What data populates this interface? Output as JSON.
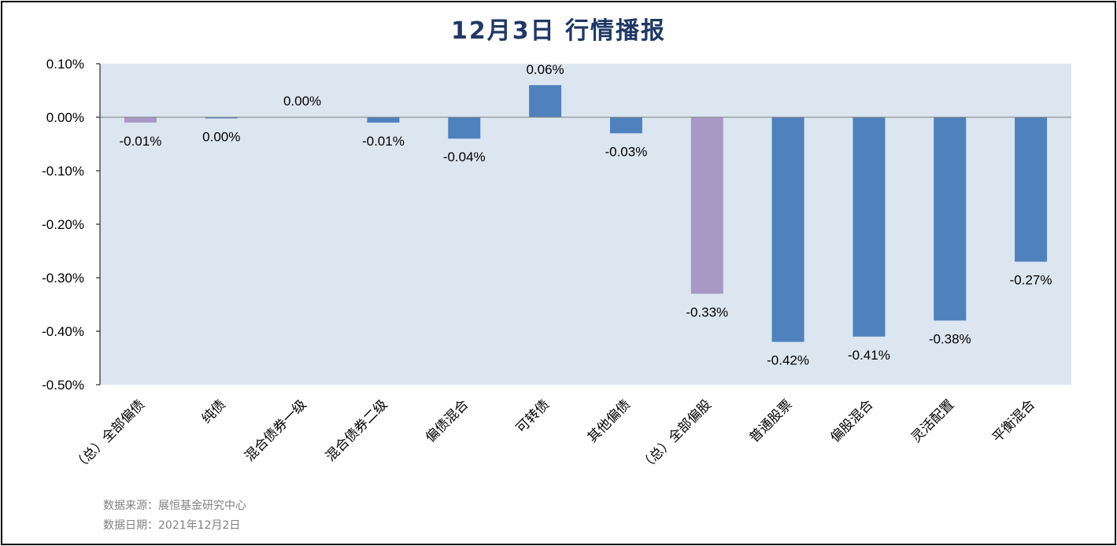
{
  "chart_data": {
    "type": "bar",
    "title": "12月3日  行情播报",
    "categories": [
      "（总）全部偏债",
      "纯债",
      "混合债券一级",
      "混合债券二级",
      "偏债混合",
      "可转债",
      "其他偏债",
      "（总）全部偏股",
      "普通股票",
      "偏股混合",
      "灵活配置",
      "平衡混合"
    ],
    "values": [
      -0.0001,
      -2e-05,
      0.0,
      -0.0001,
      -0.0004,
      0.0006,
      -0.0003,
      -0.0033,
      -0.0042,
      -0.0041,
      -0.0038,
      -0.0027
    ],
    "labels": [
      "-0.01%",
      "0.00%",
      "0.00%",
      "-0.01%",
      "-0.04%",
      "0.06%",
      "-0.03%",
      "-0.33%",
      "-0.42%",
      "-0.41%",
      "-0.38%",
      "-0.27%"
    ],
    "bar_colors": [
      "#a899c4",
      "#4f81bd",
      "#4f81bd",
      "#4f81bd",
      "#4f81bd",
      "#4f81bd",
      "#4f81bd",
      "#a899c4",
      "#4f81bd",
      "#4f81bd",
      "#4f81bd",
      "#4f81bd"
    ],
    "ylim": [
      -0.005,
      0.001
    ],
    "yticks": [
      0.001,
      0.0,
      -0.001,
      -0.002,
      -0.003,
      -0.004,
      -0.005
    ],
    "ytick_labels": [
      "0.10%",
      "0.00%",
      "-0.10%",
      "-0.20%",
      "-0.30%",
      "-0.40%",
      "-0.50%"
    ],
    "plot_background": "#dce6f1",
    "grid": false
  },
  "footer": {
    "source": "数据来源：展恒基金研究中心",
    "date": "数据日期：2021年12月2日"
  }
}
